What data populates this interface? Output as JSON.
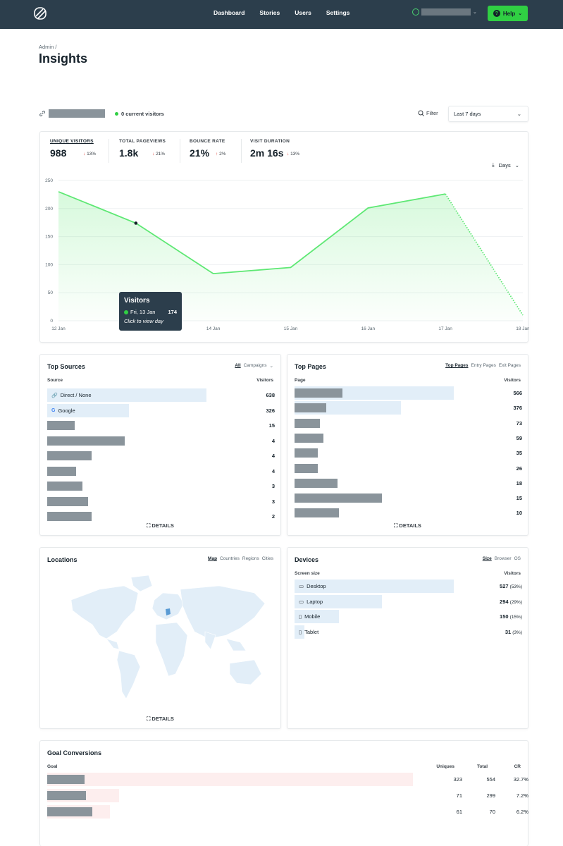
{
  "nav": {
    "items": [
      "Dashboard",
      "Stories",
      "Users",
      "Settings"
    ],
    "help_label": "Help"
  },
  "header": {
    "breadcrumb": "Admin /",
    "title": "Insights"
  },
  "toolbar": {
    "current_visitors": "0 current visitors",
    "filter_label": "Filter",
    "date_range": "Last 7 days"
  },
  "kpis": [
    {
      "label": "Unique visitors",
      "value": "988",
      "delta": "13%",
      "dir": "down"
    },
    {
      "label": "Total pageviews",
      "value": "1.8k",
      "delta": "21%",
      "dir": "down"
    },
    {
      "label": "Bounce rate",
      "value": "21%",
      "delta": "2%",
      "dir": "up"
    },
    {
      "label": "Visit duration",
      "value": "2m 16s",
      "delta": "13%",
      "dir": "down"
    }
  ],
  "days_label": "Days",
  "chart_data": {
    "type": "area",
    "x": [
      "12 Jan",
      "13 Jan",
      "14 Jan",
      "15 Jan",
      "16 Jan",
      "17 Jan",
      "18 Jan"
    ],
    "series": [
      {
        "values": [
          230,
          174,
          84,
          95,
          201,
          226,
          10
        ]
      }
    ],
    "ylim": [
      0,
      250
    ],
    "yticks": [
      0,
      50,
      100,
      150,
      200,
      250
    ],
    "grid": true,
    "incomplete_last_point": true
  },
  "tooltip": {
    "title": "Visitors",
    "date": "Fri, 13 Jan",
    "value": "174",
    "hint": "Click to view day"
  },
  "sources": {
    "title": "Top Sources",
    "tabs": [
      "All",
      "Campaigns"
    ],
    "col1": "Source",
    "col2": "Visitors",
    "rows": [
      {
        "label": "Direct / None",
        "value": "638",
        "frac": 0.82
      },
      {
        "label": "Google",
        "value": "326",
        "frac": 0.42
      },
      {
        "label": "",
        "value": "15",
        "frac": 0.14
      },
      {
        "label": "",
        "value": "4",
        "frac": 0.4
      },
      {
        "label": "",
        "value": "4",
        "frac": 0.23
      },
      {
        "label": "",
        "value": "4",
        "frac": 0.15
      },
      {
        "label": "",
        "value": "3",
        "frac": 0.18
      },
      {
        "label": "",
        "value": "3",
        "frac": 0.21
      },
      {
        "label": "",
        "value": "2",
        "frac": 0.23
      }
    ],
    "details": "DETAILS"
  },
  "pages": {
    "title": "Top Pages",
    "tabs": [
      "Top Pages",
      "Entry Pages",
      "Exit Pages"
    ],
    "col1": "Page",
    "col2": "Visitors",
    "rows": [
      {
        "value": "566",
        "frac": 0.82
      },
      {
        "value": "376",
        "frac": 0.55
      },
      {
        "value": "73",
        "frac": 0.13
      },
      {
        "value": "59",
        "frac": 0.15
      },
      {
        "value": "35",
        "frac": 0.12
      },
      {
        "value": "26",
        "frac": 0.12
      },
      {
        "value": "18",
        "frac": 0.22
      },
      {
        "value": "15",
        "frac": 0.45
      },
      {
        "value": "10",
        "frac": 0.23
      }
    ],
    "details": "DETAILS"
  },
  "locations": {
    "title": "Locations",
    "tabs": [
      "Map",
      "Countries",
      "Regions",
      "Cities"
    ],
    "details": "DETAILS"
  },
  "devices": {
    "title": "Devices",
    "tabs": [
      "Size",
      "Browser",
      "OS"
    ],
    "col1": "Screen size",
    "col2": "Visitors",
    "rows": [
      {
        "label": "Desktop",
        "value": "527",
        "pct": "(53%)",
        "frac": 0.82
      },
      {
        "label": "Laptop",
        "value": "294",
        "pct": "(29%)",
        "frac": 0.45
      },
      {
        "label": "Mobile",
        "value": "150",
        "pct": "(15%)",
        "frac": 0.23
      },
      {
        "label": "Tablet",
        "value": "31",
        "pct": "(3%)",
        "frac": 0.05
      }
    ]
  },
  "goals": {
    "title": "Goal Conversions",
    "cols": [
      "Goal",
      "Uniques",
      "Total",
      "CR"
    ],
    "rows": [
      {
        "uniques": "323",
        "total": "554",
        "cr": "32.7%",
        "frac": 0.76
      },
      {
        "uniques": "71",
        "total": "299",
        "cr": "7.2%",
        "frac": 0.15
      },
      {
        "uniques": "61",
        "total": "70",
        "cr": "6.2%",
        "frac": 0.13
      }
    ]
  },
  "colors": {
    "topbar": "#2c3e4c",
    "accent": "#30cf43",
    "line": "#5ee874",
    "bar": "#e2eef8",
    "goal_bar": "#fdeeee"
  }
}
